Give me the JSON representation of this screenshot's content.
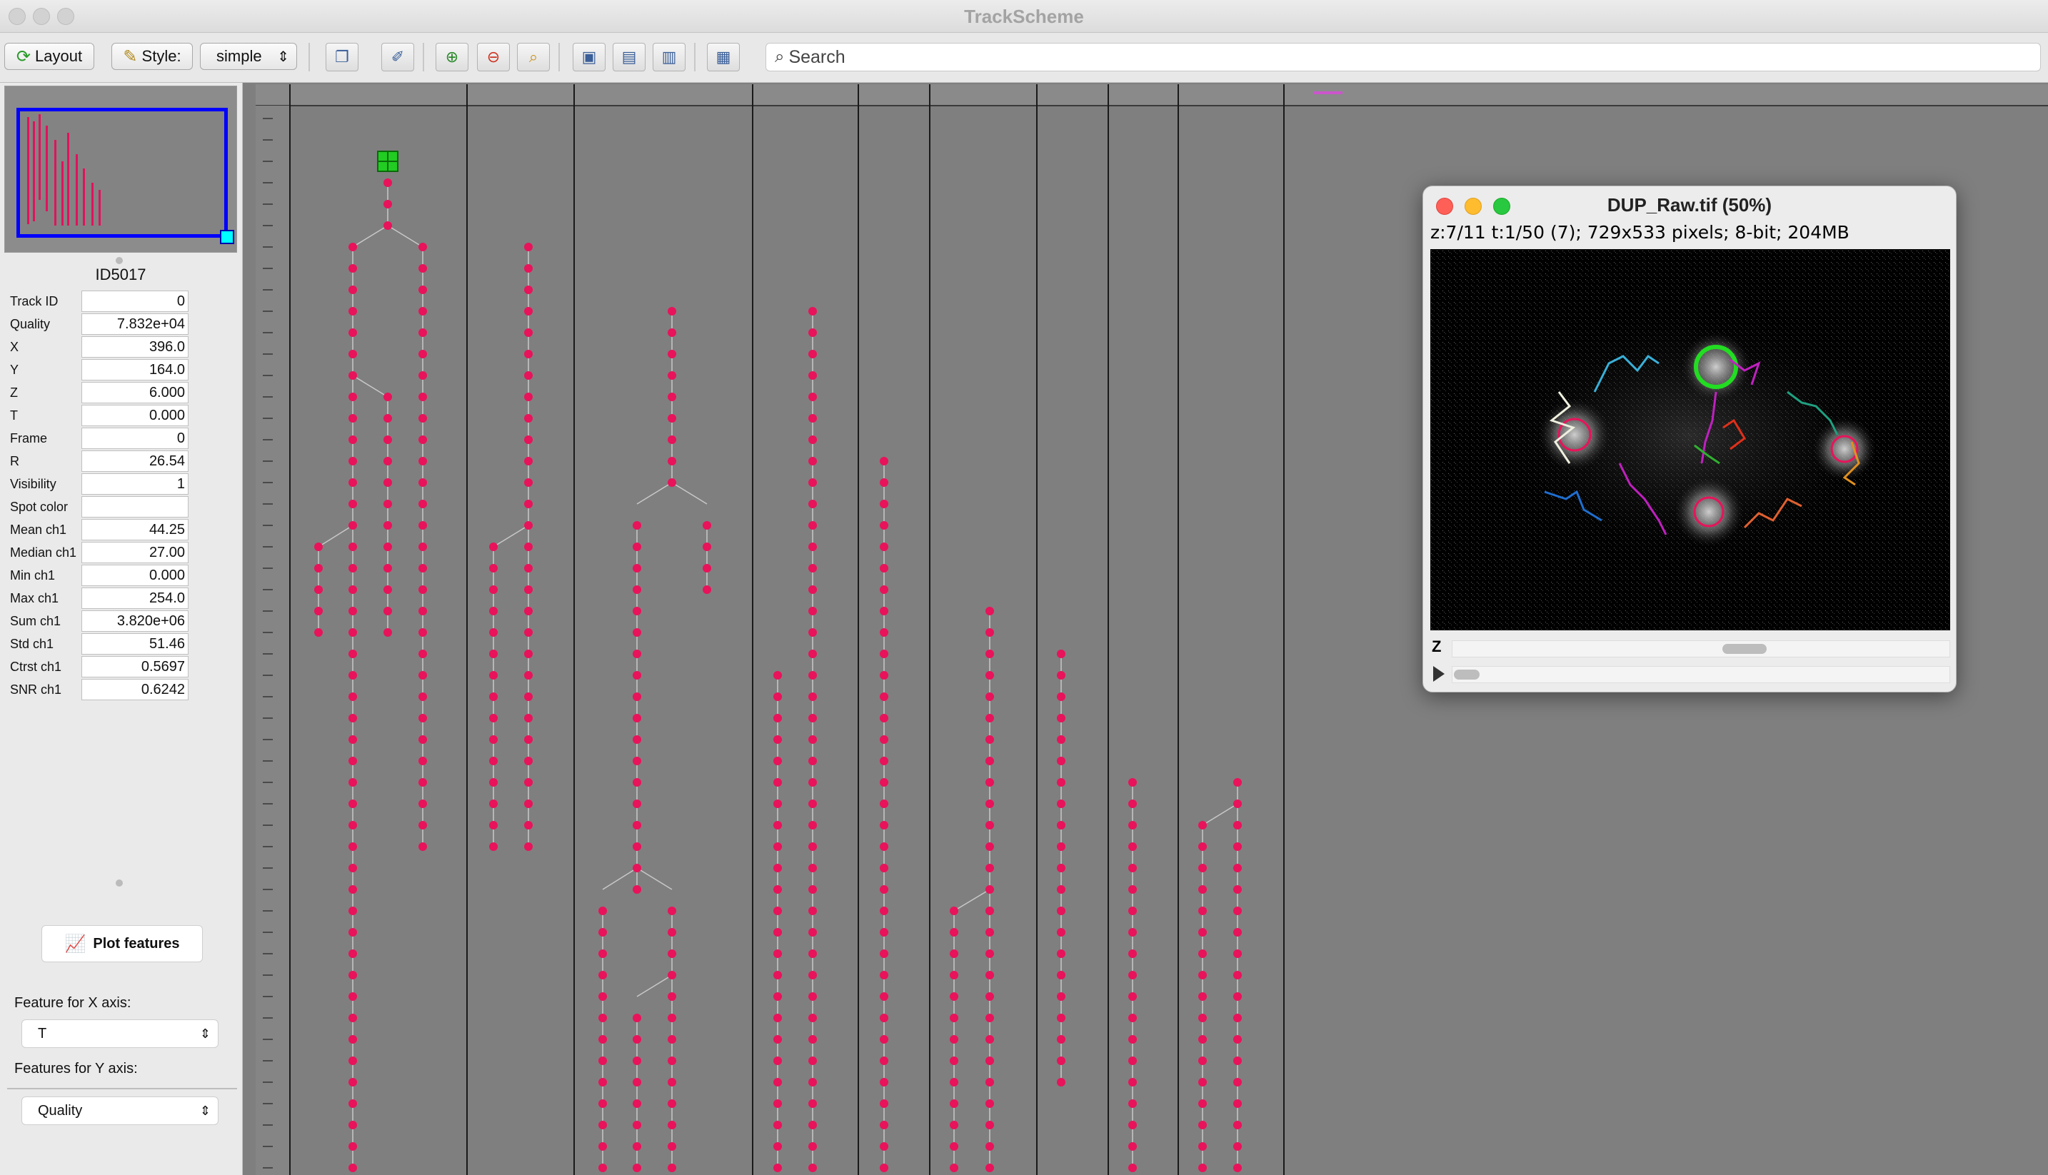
{
  "window": {
    "title": "TrackScheme"
  },
  "toolbar": {
    "layout_label": "Layout",
    "style_label": "Style:",
    "style_value": "simple",
    "search_placeholder": "Search"
  },
  "spot": {
    "name": "ID5017",
    "features": [
      {
        "label": "Track ID",
        "value": "0"
      },
      {
        "label": "Quality",
        "value": "7.832e+04"
      },
      {
        "label": "X",
        "value": "396.0"
      },
      {
        "label": "Y",
        "value": "164.0"
      },
      {
        "label": "Z",
        "value": "6.000"
      },
      {
        "label": "T",
        "value": "0.000"
      },
      {
        "label": "Frame",
        "value": "0"
      },
      {
        "label": "R",
        "value": "26.54"
      },
      {
        "label": "Visibility",
        "value": "1"
      },
      {
        "label": "Spot color",
        "value": ""
      },
      {
        "label": "Mean ch1",
        "value": "44.25"
      },
      {
        "label": "Median ch1",
        "value": "27.00"
      },
      {
        "label": "Min ch1",
        "value": "0.000"
      },
      {
        "label": "Max ch1",
        "value": "254.0"
      },
      {
        "label": "Sum ch1",
        "value": "3.820e+06"
      },
      {
        "label": "Std ch1",
        "value": "51.46"
      },
      {
        "label": "Ctrst ch1",
        "value": "0.5697"
      },
      {
        "label": "SNR ch1",
        "value": "0.6242"
      }
    ]
  },
  "plot": {
    "button_label": "Plot features",
    "x_axis_label": "Feature for X axis:",
    "x_axis_value": "T",
    "y_axis_label": "Features for Y axis:",
    "y_axis_value": "Quality"
  },
  "image_window": {
    "title": "DUP_Raw.tif (50%)",
    "info": "z:7/11 t:1/50 (7); 729x533 pixels; 8-bit; 204MB",
    "z_label": "Z"
  },
  "colors": {
    "spot": "#e8135a",
    "edge": "#c8c8c8",
    "selection": "#22cc22",
    "overview_frame": "#0000ff",
    "canvas_bg": "#7f7f7f"
  },
  "icons": [
    "layout-icon",
    "style-icon",
    "zoom-in-icon",
    "zoom-out-icon",
    "zoom-fit-icon",
    "search-icon",
    "plot-icon"
  ]
}
